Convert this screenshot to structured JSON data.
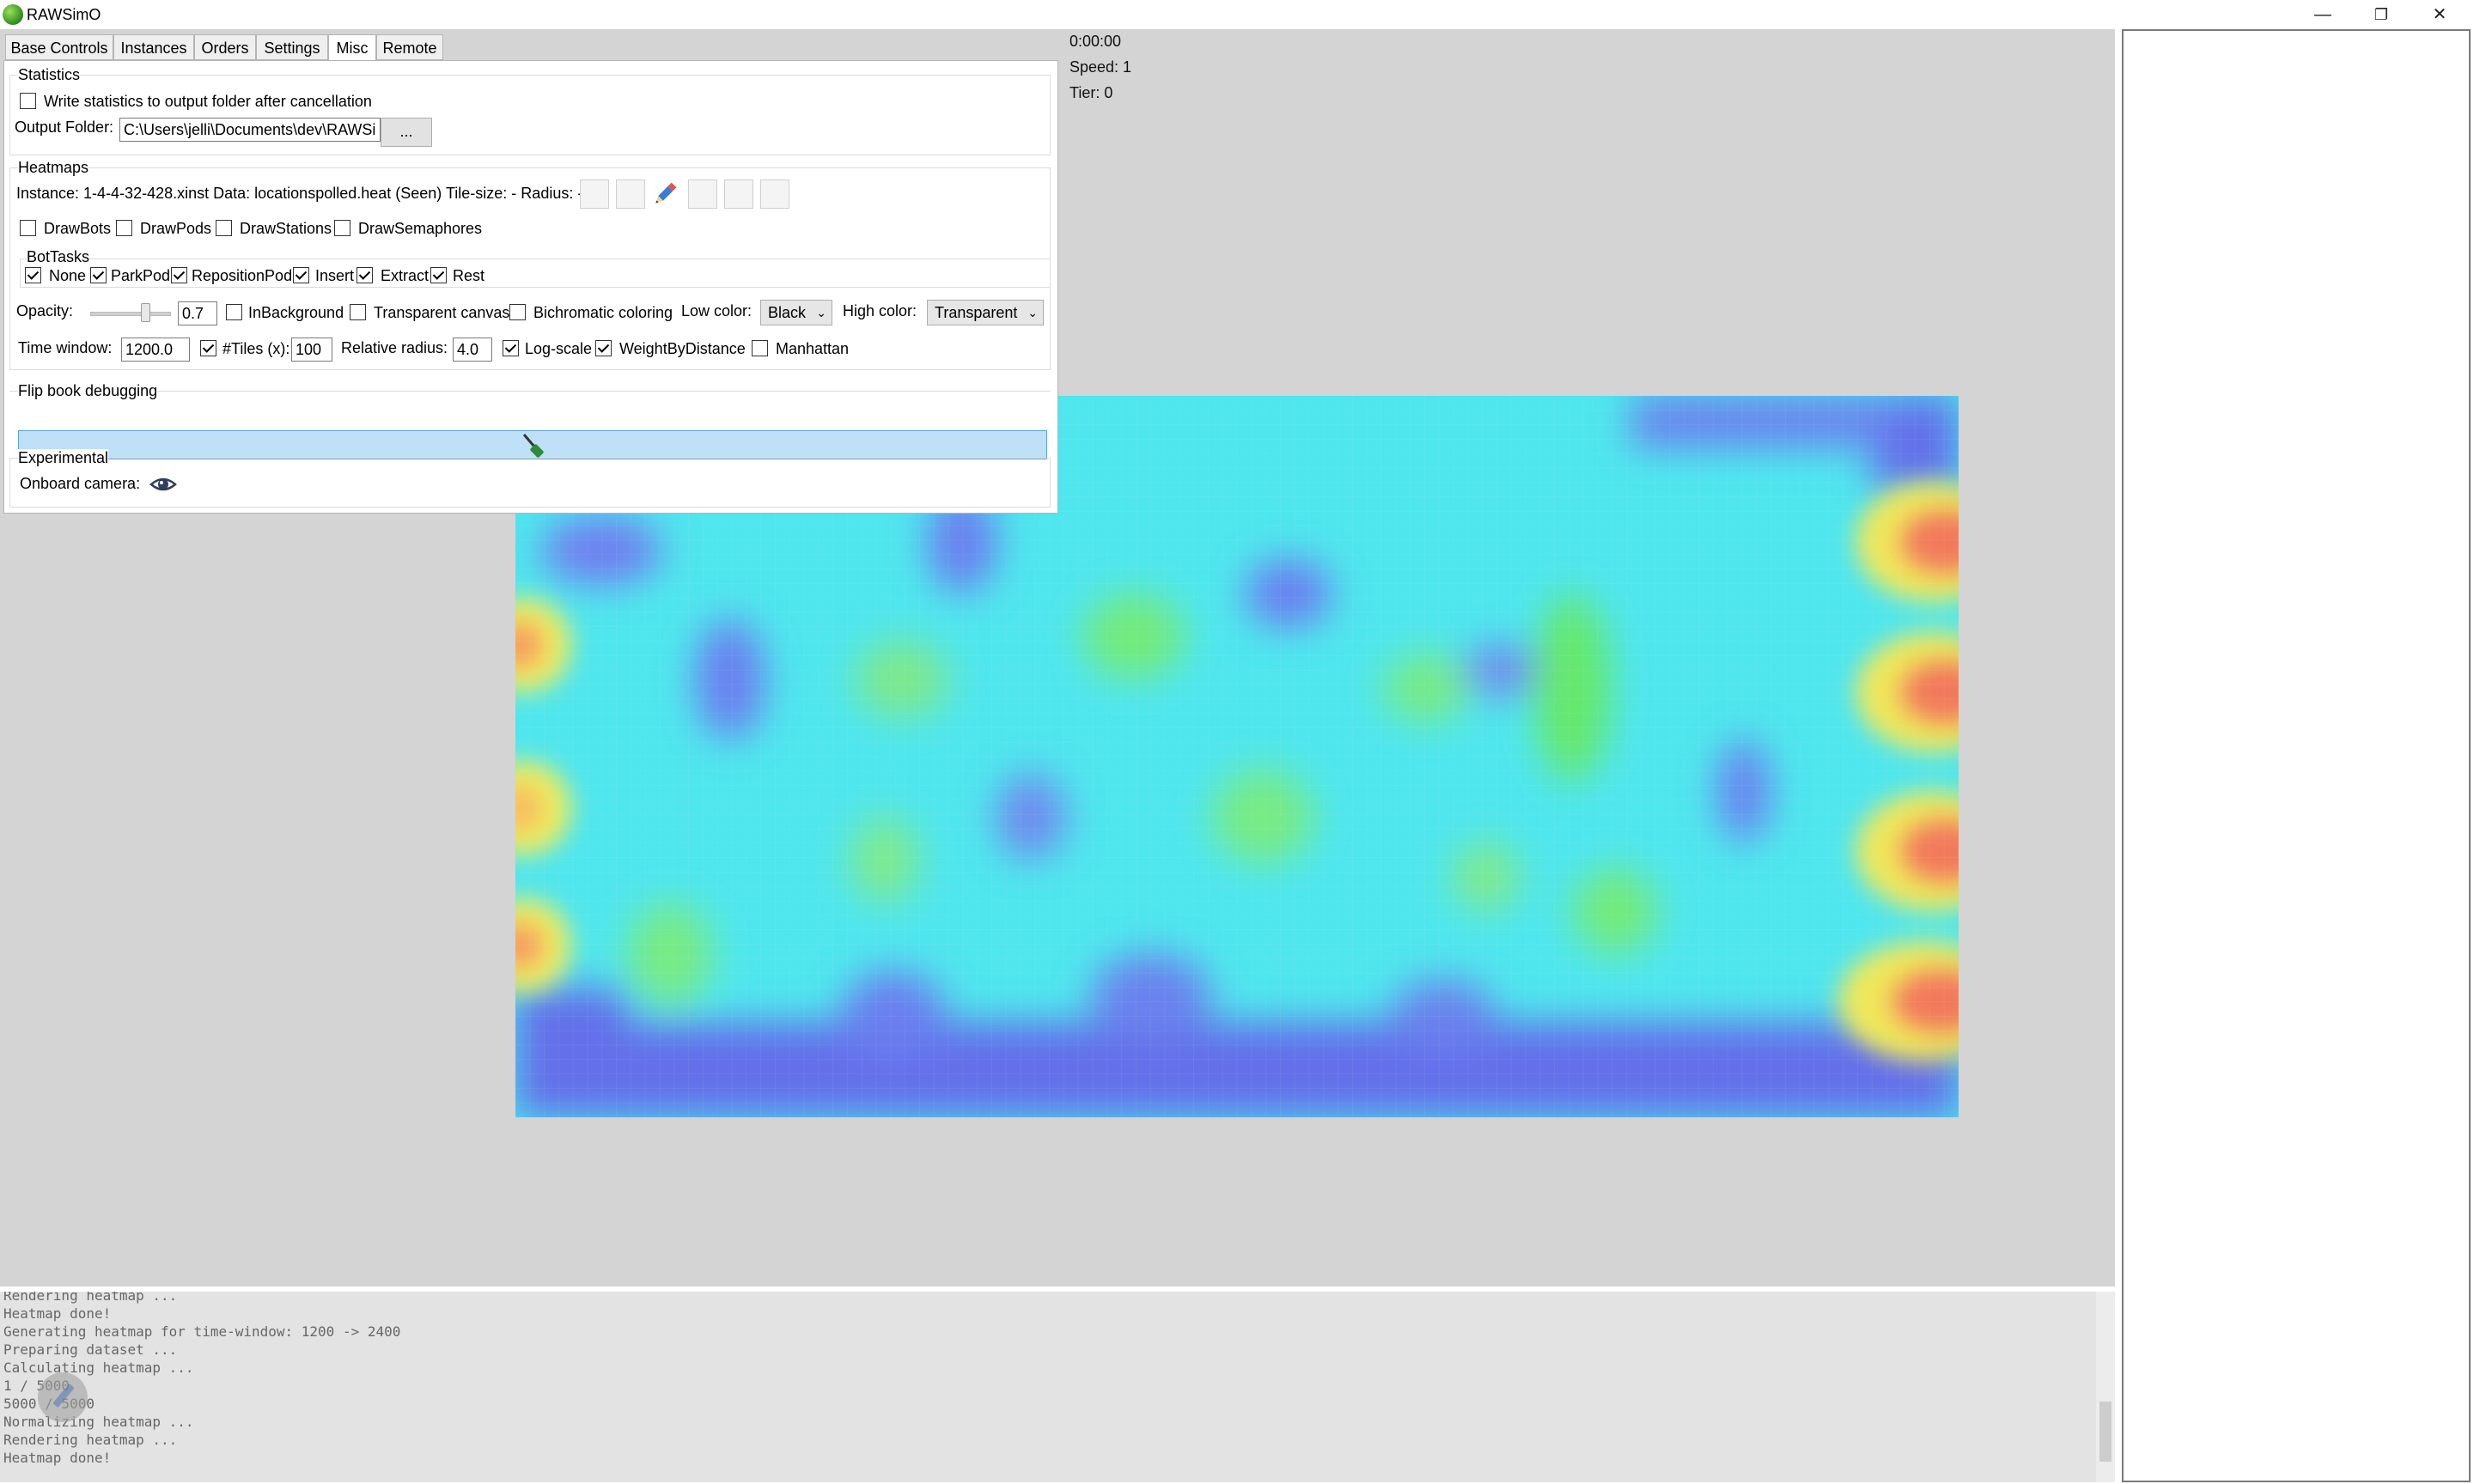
{
  "app": {
    "title": "RAWSimO"
  },
  "window_controls": {
    "minimize": "—",
    "restore": "❐",
    "close": "✕"
  },
  "sim_info": {
    "time": "0:00:00",
    "speed": "Speed: 1",
    "tier": "Tier: 0"
  },
  "tabs": [
    {
      "label": "Base Controls",
      "active": false
    },
    {
      "label": "Instances",
      "active": false
    },
    {
      "label": "Orders",
      "active": false
    },
    {
      "label": "Settings",
      "active": false
    },
    {
      "label": "Misc",
      "active": true
    },
    {
      "label": "Remote",
      "active": false
    }
  ],
  "statistics": {
    "title": "Statistics",
    "write_label": "Write statistics to output folder after cancellation",
    "write_checked": false,
    "output_label": "Output Folder:",
    "output_value": "C:\\Users\\jelli\\Documents\\dev\\RAWSimO",
    "browse_label": "..."
  },
  "heatmaps": {
    "title": "Heatmaps",
    "info": "Instance: 1-4-4-32-428.xinst Data: locationspolled.heat (Seen) Tile-size: - Radius: -",
    "draw_options": [
      {
        "label": "DrawBots",
        "checked": false
      },
      {
        "label": "DrawPods",
        "checked": false
      },
      {
        "label": "DrawStations",
        "checked": false
      },
      {
        "label": "DrawSemaphores",
        "checked": false
      }
    ],
    "bottasks_title": "BotTasks",
    "bottasks": [
      {
        "label": "None",
        "checked": true
      },
      {
        "label": "ParkPod",
        "checked": true
      },
      {
        "label": "RepositionPod",
        "checked": true
      },
      {
        "label": "Insert",
        "checked": true
      },
      {
        "label": "Extract",
        "checked": true
      },
      {
        "label": "Rest",
        "checked": true
      }
    ],
    "opacity_label": "Opacity:",
    "opacity_value": "0.7",
    "opacity_level": 0.7,
    "inbackground_label": "InBackground",
    "inbackground_checked": false,
    "transparent_label": "Transparent canvas",
    "transparent_checked": false,
    "bichromatic_label": "Bichromatic coloring",
    "bichromatic_checked": false,
    "low_color_label": "Low color:",
    "low_color_value": "Black",
    "high_color_label": "High color:",
    "high_color_value": "Transparent",
    "time_window_label": "Time window:",
    "time_window_value": "1200.0",
    "tiles_label": "#Tiles (x):",
    "tiles_checked": true,
    "tiles_value": "100",
    "relative_radius_label": "Relative radius:",
    "relative_radius_value": "4.0",
    "logscale_label": "Log-scale",
    "logscale_checked": true,
    "weight_label": "WeightByDistance",
    "weight_checked": true,
    "manhattan_label": "Manhattan",
    "manhattan_checked": false
  },
  "flipbook": {
    "title": "Flip book debugging"
  },
  "experimental": {
    "title": "Experimental",
    "camera_label": "Onboard camera:"
  },
  "log_lines": [
    "Rendering heatmap ...",
    "Heatmap done!",
    "Generating heatmap for time-window: 1200 -> 2400",
    "Preparing dataset ...",
    "Calculating heatmap ...",
    "1 / 5000",
    "5000 / 5000",
    "Normalizing heatmap ...",
    "Rendering heatmap ...",
    "Heatmap done!"
  ],
  "icons": [
    "pencil-icon",
    "eye-icon",
    "brush-icon",
    "app-logo-icon"
  ],
  "colors": {
    "accent_bar": "#bfe0f7",
    "client_bg": "#d4d4d4"
  }
}
